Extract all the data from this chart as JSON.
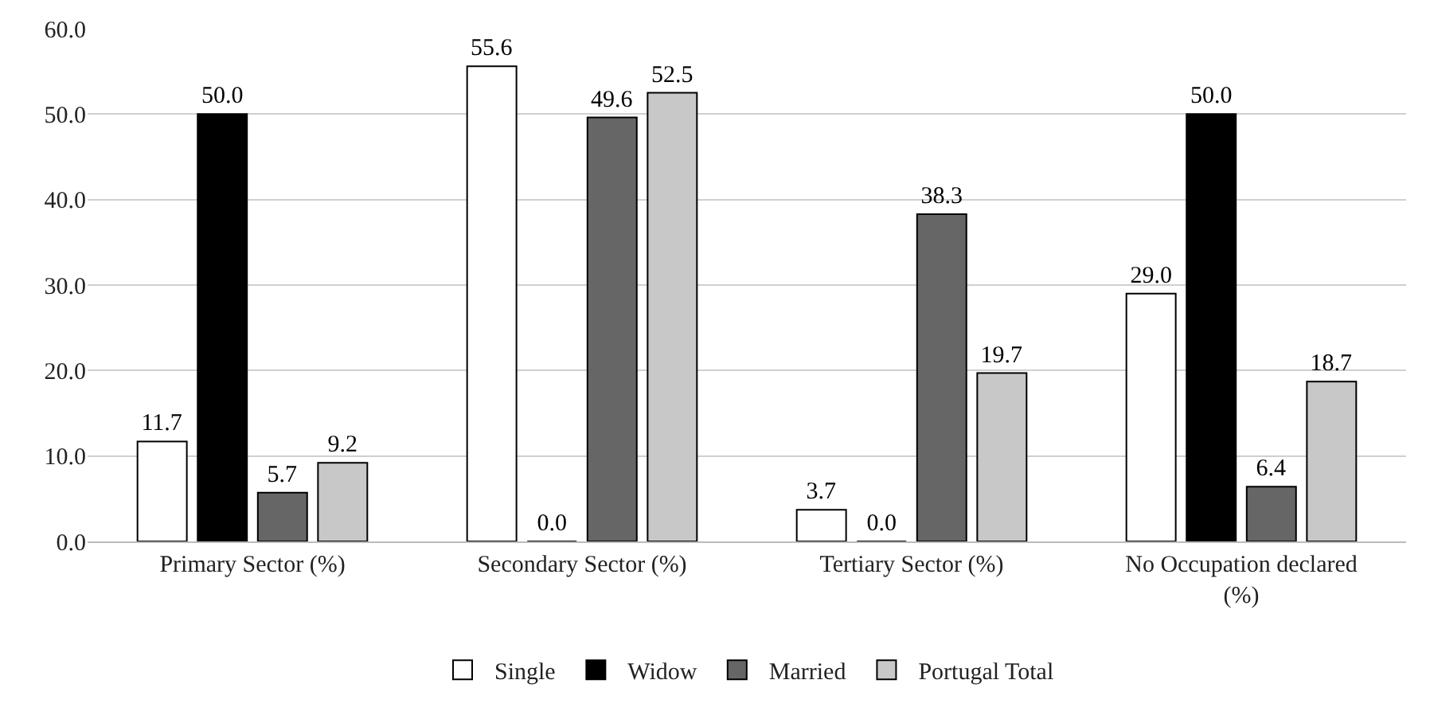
{
  "chart_data": {
    "type": "bar",
    "categories": [
      "Primary Sector (%)",
      "Secondary Sector (%)",
      "Tertiary Sector (%)",
      "No Occupation declared (%)"
    ],
    "series": [
      {
        "name": "Single",
        "color": "#ffffff",
        "values": [
          11.7,
          55.6,
          3.7,
          29.0
        ],
        "value_labels": [
          "11.7",
          "55.6",
          "3.7",
          "29.0"
        ]
      },
      {
        "name": "Widow",
        "color": "#000000",
        "values": [
          50.0,
          0.0,
          0.0,
          50.0
        ],
        "value_labels": [
          "50.0",
          "0.0",
          "0.0",
          "50.0"
        ]
      },
      {
        "name": "Married",
        "color": "#666666",
        "values": [
          5.7,
          49.6,
          38.3,
          6.4
        ],
        "value_labels": [
          "5.7",
          "49.6",
          "38.3",
          "6.4"
        ]
      },
      {
        "name": "Portugal Total",
        "color": "#c8c8c8",
        "values": [
          9.2,
          52.5,
          19.7,
          18.7
        ],
        "value_labels": [
          "9.2",
          "52.5",
          "19.7",
          "18.7"
        ]
      }
    ],
    "ylim": [
      0,
      60
    ],
    "yticks": [
      {
        "value": 0,
        "label": "0.0"
      },
      {
        "value": 10,
        "label": "10.0"
      },
      {
        "value": 20,
        "label": "20.0"
      },
      {
        "value": 30,
        "label": "30.0"
      },
      {
        "value": 40,
        "label": "40.0"
      },
      {
        "value": 50,
        "label": "50.0"
      },
      {
        "value": 60,
        "label": "60.0"
      }
    ],
    "grid": "y",
    "legend": "bottom"
  }
}
